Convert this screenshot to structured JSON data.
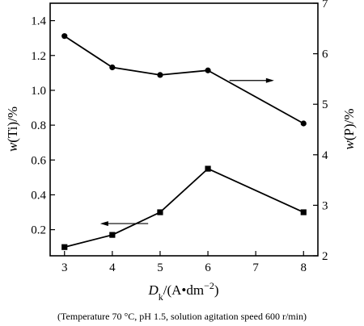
{
  "chart_data": {
    "type": "line",
    "x": [
      3,
      4,
      5,
      6,
      8
    ],
    "x_ticks": [
      3,
      4,
      5,
      6,
      7,
      8
    ],
    "xlim": [
      2.7,
      8.3
    ],
    "xlabel": {
      "main": "D",
      "sub": "k",
      "unit_prefix": "/(A•dm",
      "exponent": "−2",
      "unit_suffix": ")"
    },
    "left_axis": {
      "label_prefix": "w",
      "label_suffix": "(Ti)/%",
      "ylim": [
        0.05,
        1.5
      ],
      "ticks": [
        0.2,
        0.4,
        0.6,
        0.8,
        1.0,
        1.2,
        1.4
      ],
      "tick_labels": [
        "0.2",
        "0.4",
        "0.6",
        "0.8",
        "1.0",
        "1.2",
        "1.4"
      ]
    },
    "right_axis": {
      "label_prefix": "w",
      "label_suffix": "(P)/%",
      "ylim": [
        2,
        7
      ],
      "ticks": [
        2,
        3,
        4,
        5,
        6,
        7
      ],
      "tick_labels": [
        "2",
        "3",
        "4",
        "5",
        "6",
        "7"
      ]
    },
    "series": [
      {
        "axis": "right",
        "marker": "circle",
        "values": [
          6.35,
          5.73,
          5.58,
          5.67,
          4.62
        ],
        "arrow": "right"
      },
      {
        "axis": "left",
        "marker": "square",
        "values": [
          0.1,
          0.17,
          0.3,
          0.55,
          0.3
        ],
        "arrow": "left"
      }
    ],
    "grid": false,
    "legend": "none"
  },
  "caption": "(Temperature 70 °C, pH 1.5, solution agitation speed  600 r/min)"
}
